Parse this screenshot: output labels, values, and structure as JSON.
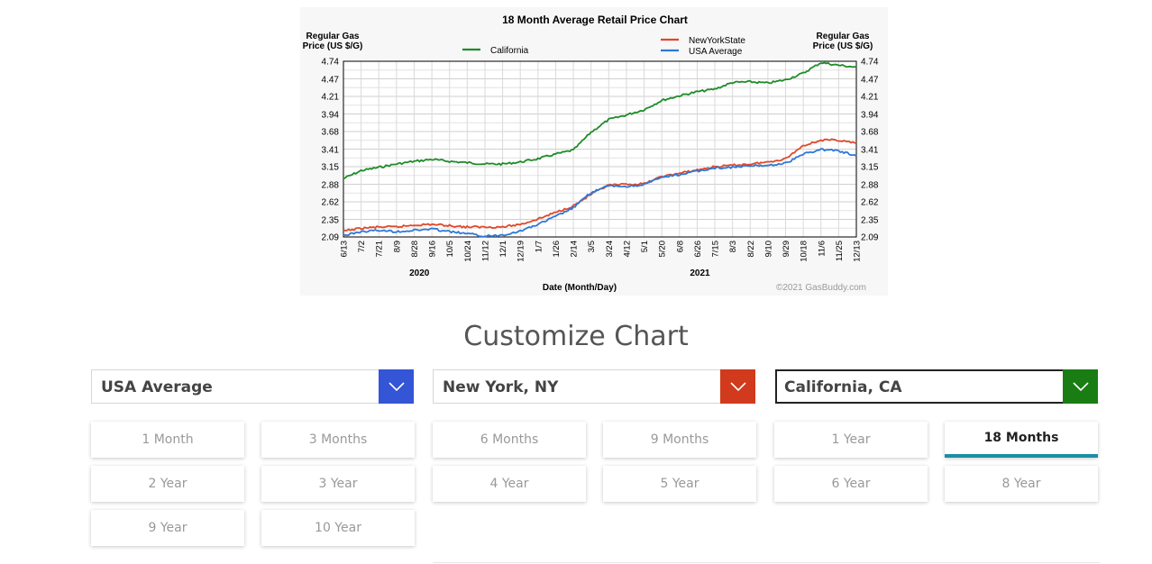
{
  "chart_data": {
    "type": "line",
    "title": "18 Month Average Retail Price Chart",
    "ylabel_left": [
      "Regular Gas",
      "Price (US $/G)"
    ],
    "ylabel_right": [
      "Regular Gas",
      "Price (US $/G)"
    ],
    "xlabel": "Date (Month/Day)",
    "copyright": "©2021 GasBuddy.com",
    "ylim": [
      2.09,
      4.74
    ],
    "y_ticks": [
      "4.74",
      "4.47",
      "4.21",
      "3.94",
      "3.68",
      "3.41",
      "3.15",
      "2.88",
      "2.62",
      "2.35",
      "2.09"
    ],
    "x_ticks": [
      "6/13",
      "7/2",
      "7/21",
      "8/9",
      "8/28",
      "9/16",
      "10/5",
      "10/24",
      "11/12",
      "12/1",
      "12/19",
      "1/7",
      "1/26",
      "2/14",
      "3/5",
      "3/24",
      "4/12",
      "5/1",
      "5/20",
      "6/8",
      "6/26",
      "7/15",
      "8/3",
      "8/22",
      "9/10",
      "9/29",
      "10/18",
      "11/6",
      "11/25",
      "12/13"
    ],
    "years": [
      "2020",
      "2021"
    ],
    "series": [
      {
        "name": "California",
        "color": "#1e8c28",
        "values": [
          2.97,
          3.09,
          3.14,
          3.19,
          3.23,
          3.26,
          3.23,
          3.21,
          3.19,
          3.19,
          3.22,
          3.27,
          3.34,
          3.4,
          3.67,
          3.86,
          3.93,
          4.01,
          4.15,
          4.22,
          4.28,
          4.32,
          4.42,
          4.43,
          4.41,
          4.46,
          4.56,
          4.72,
          4.68,
          4.65
        ]
      },
      {
        "name": "NewYorkState",
        "color": "#e0482a",
        "values": [
          2.18,
          2.22,
          2.24,
          2.24,
          2.27,
          2.28,
          2.26,
          2.24,
          2.24,
          2.24,
          2.28,
          2.36,
          2.46,
          2.56,
          2.73,
          2.87,
          2.88,
          2.89,
          3.0,
          3.05,
          3.1,
          3.15,
          3.17,
          3.19,
          3.22,
          3.27,
          3.47,
          3.55,
          3.55,
          3.5
        ]
      },
      {
        "name": "USA Average",
        "color": "#2f78d6",
        "values": [
          2.11,
          2.17,
          2.19,
          2.17,
          2.19,
          2.21,
          2.17,
          2.14,
          2.1,
          2.12,
          2.18,
          2.28,
          2.4,
          2.53,
          2.76,
          2.86,
          2.85,
          2.88,
          2.99,
          3.03,
          3.08,
          3.13,
          3.14,
          3.16,
          3.17,
          3.2,
          3.34,
          3.41,
          3.39,
          3.31
        ]
      }
    ],
    "legend": [
      "California",
      "NewYorkState",
      "USA Average"
    ]
  },
  "customize": {
    "title": "Customize Chart",
    "selects": [
      {
        "label": "USA Average",
        "color": "#3355d6"
      },
      {
        "label": "New York, NY",
        "color": "#d13a1c"
      },
      {
        "label": "California, CA",
        "color": "#1a7d14"
      }
    ],
    "ranges": [
      "1 Month",
      "3 Months",
      "6 Months",
      "9 Months",
      "1 Year",
      "18 Months",
      "2 Year",
      "3 Year",
      "4 Year",
      "5 Year",
      "6 Year",
      "8 Year",
      "9 Year",
      "10 Year"
    ],
    "selected_range": "18 Months"
  }
}
